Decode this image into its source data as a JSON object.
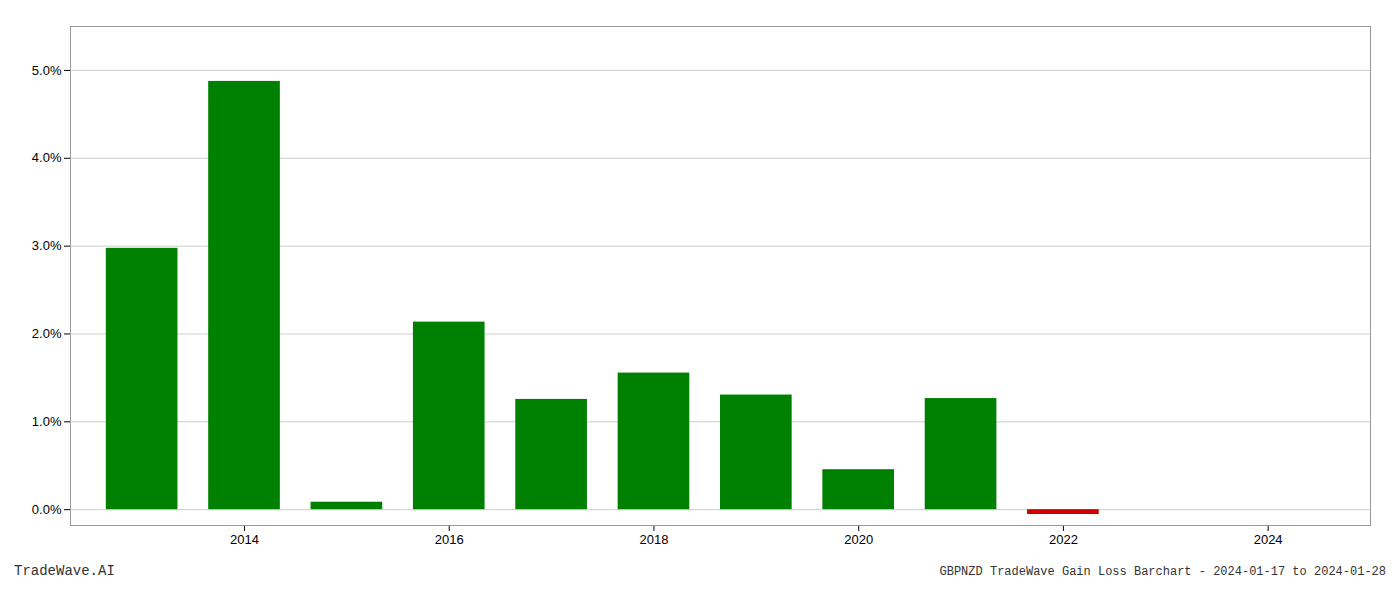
{
  "chart_data": {
    "type": "bar",
    "title": "GBPNZD TradeWave Gain Loss Barchart - 2024-01-17 to 2024-01-28",
    "annotations": [
      "TradeWave.AI"
    ],
    "x": [
      2013,
      2014,
      2015,
      2016,
      2017,
      2018,
      2019,
      2020,
      2021,
      2022,
      2023
    ],
    "values": [
      0.02975,
      0.04875,
      0.00085,
      0.02135,
      0.01255,
      0.01555,
      0.01305,
      0.00455,
      0.01265,
      -0.00055,
      0.0
    ],
    "colors": [
      "#008000",
      "#008000",
      "#008000",
      "#008000",
      "#008000",
      "#008000",
      "#008000",
      "#008000",
      "#008000",
      "#cc0000",
      "#008000"
    ],
    "xlim": [
      2012.3,
      2025.0
    ],
    "xticks": [
      2014,
      2016,
      2018,
      2020,
      2022,
      2024
    ],
    "ylim": [
      -0.0018,
      0.055
    ],
    "yticks": [
      {
        "value": 0.0,
        "label": "0.0%"
      },
      {
        "value": 0.01,
        "label": "1.0%"
      },
      {
        "value": 0.02,
        "label": "2.0%"
      },
      {
        "value": 0.03,
        "label": "3.0%"
      },
      {
        "value": 0.04,
        "label": "4.0%"
      },
      {
        "value": 0.05,
        "label": "5.0%"
      }
    ],
    "grid": true
  }
}
